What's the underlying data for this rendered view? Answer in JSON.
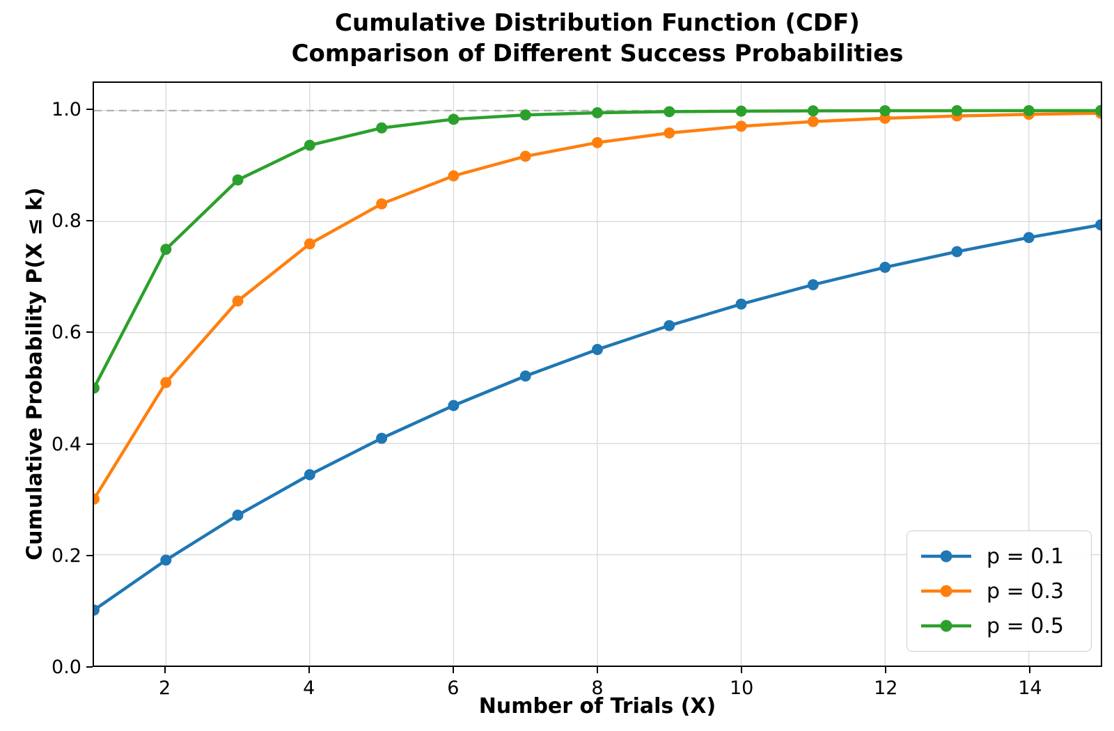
{
  "title": {
    "line1": "Cumulative Distribution Function (CDF)",
    "line2": "Comparison of Different Success Probabilities"
  },
  "chart_data": {
    "type": "line",
    "title": "Cumulative Distribution Function (CDF)\nComparison of Different Success Probabilities",
    "xlabel": "Number of Trials (X)",
    "ylabel": "Cumulative Probability P(X ≤ k)",
    "x": [
      1,
      2,
      3,
      4,
      5,
      6,
      7,
      8,
      9,
      10,
      11,
      12,
      13,
      14,
      15
    ],
    "series": [
      {
        "name": "p = 0.1",
        "color": "#1f77b4",
        "values": [
          0.1,
          0.19,
          0.271,
          0.3439,
          0.40951,
          0.468559,
          0.521703,
          0.569533,
          0.61258,
          0.651322,
          0.686189,
          0.71757,
          0.745813,
          0.771232,
          0.794109
        ]
      },
      {
        "name": "p = 0.3",
        "color": "#ff7f0e",
        "values": [
          0.3,
          0.51,
          0.657,
          0.7599,
          0.83193,
          0.882351,
          0.917646,
          0.942352,
          0.959646,
          0.971752,
          0.980227,
          0.986159,
          0.990311,
          0.993218,
          0.995252
        ]
      },
      {
        "name": "p = 0.5",
        "color": "#2ca02c",
        "values": [
          0.5,
          0.75,
          0.875,
          0.9375,
          0.96875,
          0.984375,
          0.992188,
          0.996094,
          0.998047,
          0.999023,
          0.999512,
          0.999756,
          0.999878,
          0.999939,
          0.999969
        ]
      }
    ],
    "xlim": [
      1,
      15
    ],
    "ylim": [
      0,
      1.05
    ],
    "x_ticks": [
      2,
      4,
      6,
      8,
      10,
      12,
      14
    ],
    "y_ticks": [
      0.0,
      0.2,
      0.4,
      0.6,
      0.8,
      1.0
    ],
    "grid": true,
    "reference_line_y": 1.0,
    "legend_position": "lower right"
  },
  "style_colors": {
    "grid": "#dcdcdc",
    "reference_dashed": "#b0b0b0",
    "axes": "#000000"
  }
}
